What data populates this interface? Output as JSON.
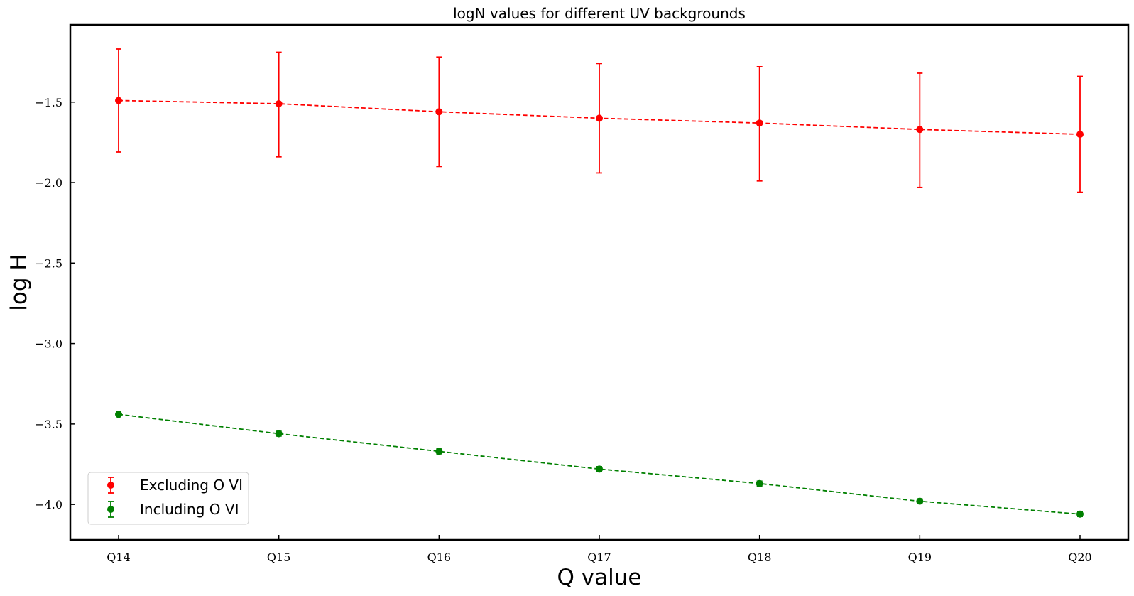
{
  "chart_data": {
    "type": "line",
    "title": "logN values for different UV backgrounds",
    "xlabel": "Q value",
    "ylabel": "log H",
    "categories": [
      "Q14",
      "Q15",
      "Q16",
      "Q17",
      "Q18",
      "Q19",
      "Q20"
    ],
    "ylim": [
      -4.22,
      -1.02
    ],
    "yticks": [
      -1.5,
      -2.0,
      -2.5,
      -3.0,
      -3.5,
      -4.0
    ],
    "ytick_labels": [
      "−1.5",
      "−2.0",
      "−2.5",
      "−3.0",
      "−3.5",
      "−4.0"
    ],
    "grid": false,
    "legend_position": "lower-left",
    "series": [
      {
        "name": "Excluding O VI",
        "color": "#ff0000",
        "marker": "circle",
        "linestyle": "dashed",
        "values": [
          -1.49,
          -1.51,
          -1.56,
          -1.6,
          -1.63,
          -1.67,
          -1.7
        ],
        "err_upper": [
          -1.17,
          -1.19,
          -1.22,
          -1.26,
          -1.28,
          -1.32,
          -1.34
        ],
        "err_lower": [
          -1.81,
          -1.84,
          -1.9,
          -1.94,
          -1.99,
          -2.03,
          -2.06
        ]
      },
      {
        "name": "Including O VI",
        "color": "#008000",
        "marker": "circle",
        "linestyle": "dashed",
        "values": [
          -3.44,
          -3.56,
          -3.67,
          -3.78,
          -3.87,
          -3.98,
          -4.06
        ],
        "err_upper": [
          -3.425,
          -3.545,
          -3.655,
          -3.765,
          -3.855,
          -3.965,
          -4.045
        ],
        "err_lower": [
          -3.455,
          -3.575,
          -3.685,
          -3.795,
          -3.885,
          -3.995,
          -4.075
        ]
      }
    ]
  }
}
